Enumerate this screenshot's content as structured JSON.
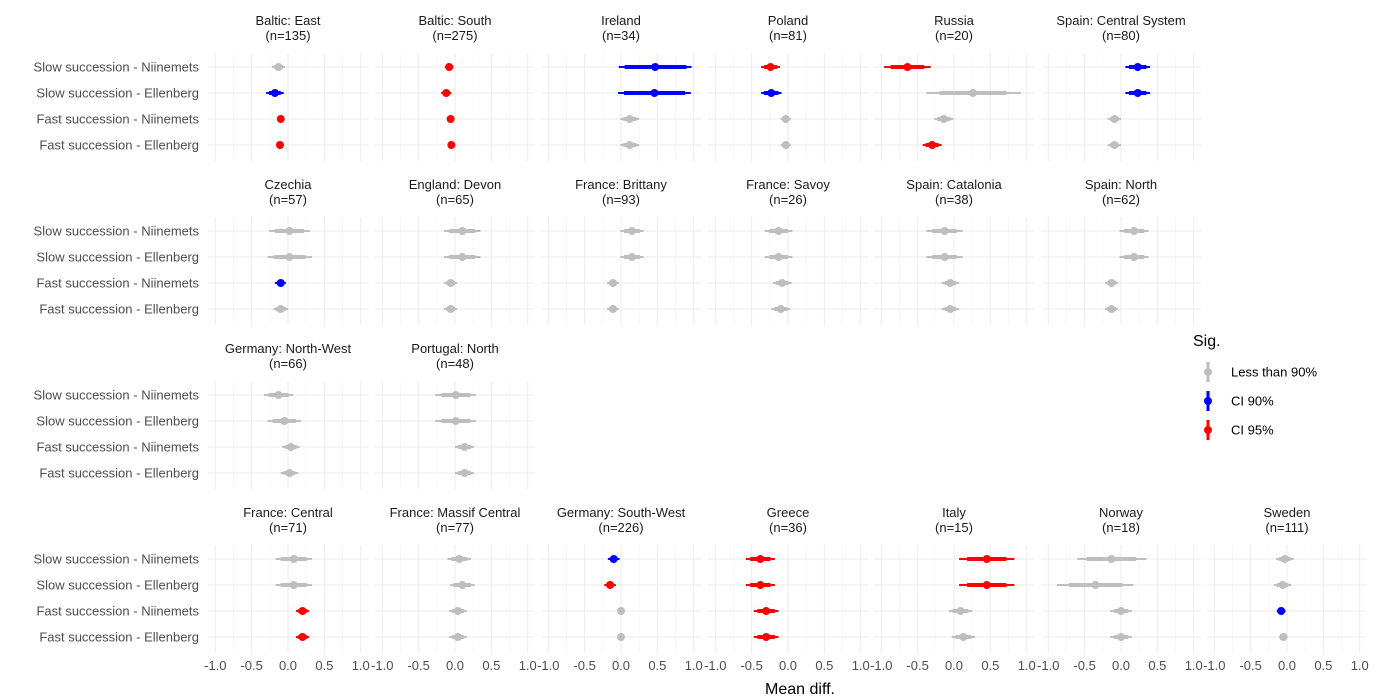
{
  "chart_data": {
    "type": "pointrange-facet",
    "xlabel": "Mean diff.",
    "xlim": [
      -1.1,
      1.1
    ],
    "xticks": [
      "-1.0",
      "-0.5",
      "0.0",
      "0.5",
      "1.0"
    ],
    "rows": [
      "Slow succession - Niinemets",
      "Slow succession - Ellenberg",
      "Fast succession - Niinemets",
      "Fast succession - Ellenberg"
    ],
    "legend": {
      "title": "Sig.",
      "position": "right",
      "entries": [
        {
          "key": "none",
          "label": "Less than 90%",
          "color": "#bebebe"
        },
        {
          "key": "ci90",
          "label": "CI 90%",
          "color": "#0000ff"
        },
        {
          "key": "ci95",
          "label": "CI 95%",
          "color": "#ff0000"
        }
      ]
    },
    "panels": [
      {
        "name": "Baltic: East",
        "n": "(n=135)",
        "row": 0,
        "col": 0,
        "points": [
          {
            "est": -0.13,
            "lo90": -0.19,
            "hi90": -0.07,
            "lo95": -0.22,
            "hi95": -0.04,
            "sig": "none"
          },
          {
            "est": -0.18,
            "lo90": -0.26,
            "hi90": -0.1,
            "lo95": -0.3,
            "hi95": -0.06,
            "sig": "ci90"
          },
          {
            "est": -0.1,
            "lo90": -0.13,
            "hi90": -0.07,
            "lo95": -0.15,
            "hi95": -0.05,
            "sig": "ci95"
          },
          {
            "est": -0.11,
            "lo90": -0.14,
            "hi90": -0.08,
            "lo95": -0.16,
            "hi95": -0.06,
            "sig": "ci95"
          }
        ]
      },
      {
        "name": "Baltic: South",
        "n": "(n=275)",
        "row": 0,
        "col": 1,
        "points": [
          {
            "est": -0.08,
            "lo90": -0.12,
            "hi90": -0.04,
            "lo95": -0.14,
            "hi95": -0.02,
            "sig": "ci95"
          },
          {
            "est": -0.12,
            "lo90": -0.17,
            "hi90": -0.07,
            "lo95": -0.19,
            "hi95": -0.05,
            "sig": "ci95"
          },
          {
            "est": -0.06,
            "lo90": -0.08,
            "hi90": -0.04,
            "lo95": -0.09,
            "hi95": -0.03,
            "sig": "ci95"
          },
          {
            "est": -0.05,
            "lo90": -0.07,
            "hi90": -0.03,
            "lo95": -0.08,
            "hi95": -0.02,
            "sig": "ci95"
          }
        ]
      },
      {
        "name": "Ireland",
        "n": "(n=34)",
        "row": 0,
        "col": 2,
        "points": [
          {
            "est": 0.47,
            "lo90": 0.05,
            "hi90": 0.9,
            "lo95": -0.03,
            "hi95": 0.97,
            "sig": "ci90"
          },
          {
            "est": 0.46,
            "lo90": 0.04,
            "hi90": 0.88,
            "lo95": -0.04,
            "hi95": 0.96,
            "sig": "ci90"
          },
          {
            "est": 0.12,
            "lo90": 0.03,
            "hi90": 0.21,
            "lo95": -0.01,
            "hi95": 0.25,
            "sig": "none"
          },
          {
            "est": 0.12,
            "lo90": 0.03,
            "hi90": 0.21,
            "lo95": -0.01,
            "hi95": 0.25,
            "sig": "none"
          }
        ]
      },
      {
        "name": "Poland",
        "n": "(n=81)",
        "row": 0,
        "col": 3,
        "points": [
          {
            "est": -0.24,
            "lo90": -0.33,
            "hi90": -0.15,
            "lo95": -0.37,
            "hi95": -0.11,
            "sig": "ci95"
          },
          {
            "est": -0.23,
            "lo90": -0.33,
            "hi90": -0.13,
            "lo95": -0.37,
            "hi95": -0.09,
            "sig": "ci90"
          },
          {
            "est": -0.03,
            "lo90": -0.08,
            "hi90": 0.02,
            "lo95": -0.1,
            "hi95": 0.04,
            "sig": "none"
          },
          {
            "est": -0.03,
            "lo90": -0.08,
            "hi90": 0.02,
            "lo95": -0.1,
            "hi95": 0.04,
            "sig": "none"
          }
        ]
      },
      {
        "name": "Russia",
        "n": "(n=20)",
        "row": 0,
        "col": 4,
        "points": [
          {
            "est": -0.64,
            "lo90": -0.87,
            "hi90": -0.41,
            "lo95": -0.96,
            "hi95": -0.32,
            "sig": "ci95"
          },
          {
            "est": 0.26,
            "lo90": -0.2,
            "hi90": 0.72,
            "lo95": -0.38,
            "hi95": 0.92,
            "sig": "none"
          },
          {
            "est": -0.14,
            "lo90": -0.23,
            "hi90": -0.05,
            "lo95": -0.27,
            "hi95": -0.01,
            "sig": "none"
          },
          {
            "est": -0.3,
            "lo90": -0.39,
            "hi90": -0.21,
            "lo95": -0.43,
            "hi95": -0.17,
            "sig": "ci95"
          }
        ]
      },
      {
        "name": "Spain: Central System",
        "n": "(n=80)",
        "row": 0,
        "col": 5,
        "points": [
          {
            "est": 0.23,
            "lo90": 0.11,
            "hi90": 0.35,
            "lo95": 0.06,
            "hi95": 0.4,
            "sig": "ci90"
          },
          {
            "est": 0.23,
            "lo90": 0.11,
            "hi90": 0.35,
            "lo95": 0.06,
            "hi95": 0.4,
            "sig": "ci90"
          },
          {
            "est": -0.09,
            "lo90": -0.15,
            "hi90": -0.03,
            "lo95": -0.18,
            "hi95": 0.0,
            "sig": "none"
          },
          {
            "est": -0.09,
            "lo90": -0.15,
            "hi90": -0.03,
            "lo95": -0.18,
            "hi95": 0.0,
            "sig": "none"
          }
        ]
      },
      {
        "name": "Czechia",
        "n": "(n=57)",
        "row": 1,
        "col": 0,
        "points": [
          {
            "est": 0.02,
            "lo90": -0.18,
            "hi90": 0.22,
            "lo95": -0.26,
            "hi95": 0.3,
            "sig": "none"
          },
          {
            "est": 0.02,
            "lo90": -0.2,
            "hi90": 0.24,
            "lo95": -0.28,
            "hi95": 0.33,
            "sig": "none"
          },
          {
            "est": -0.1,
            "lo90": -0.15,
            "hi90": -0.05,
            "lo95": -0.18,
            "hi95": -0.03,
            "sig": "ci90"
          },
          {
            "est": -0.1,
            "lo90": -0.17,
            "hi90": -0.03,
            "lo95": -0.2,
            "hi95": 0.0,
            "sig": "none"
          }
        ]
      },
      {
        "name": "England: Devon",
        "n": "(n=65)",
        "row": 1,
        "col": 1,
        "points": [
          {
            "est": 0.1,
            "lo90": -0.08,
            "hi90": 0.28,
            "lo95": -0.15,
            "hi95": 0.35,
            "sig": "none"
          },
          {
            "est": 0.1,
            "lo90": -0.08,
            "hi90": 0.28,
            "lo95": -0.15,
            "hi95": 0.35,
            "sig": "none"
          },
          {
            "est": -0.06,
            "lo90": -0.12,
            "hi90": 0.0,
            "lo95": -0.15,
            "hi95": 0.03,
            "sig": "none"
          },
          {
            "est": -0.06,
            "lo90": -0.12,
            "hi90": 0.0,
            "lo95": -0.15,
            "hi95": 0.03,
            "sig": "none"
          }
        ]
      },
      {
        "name": "France: Brittany",
        "n": "(n=93)",
        "row": 1,
        "col": 2,
        "points": [
          {
            "est": 0.15,
            "lo90": 0.04,
            "hi90": 0.26,
            "lo95": -0.01,
            "hi95": 0.31,
            "sig": "none"
          },
          {
            "est": 0.15,
            "lo90": 0.04,
            "hi90": 0.26,
            "lo95": -0.01,
            "hi95": 0.31,
            "sig": "none"
          },
          {
            "est": -0.11,
            "lo90": -0.16,
            "hi90": -0.06,
            "lo95": -0.19,
            "hi95": -0.03,
            "sig": "none"
          },
          {
            "est": -0.11,
            "lo90": -0.16,
            "hi90": -0.06,
            "lo95": -0.19,
            "hi95": -0.03,
            "sig": "none"
          }
        ]
      },
      {
        "name": "France: Savoy",
        "n": "(n=26)",
        "row": 1,
        "col": 3,
        "points": [
          {
            "est": -0.13,
            "lo90": -0.26,
            "hi90": 0.0,
            "lo95": -0.32,
            "hi95": 0.06,
            "sig": "none"
          },
          {
            "est": -0.13,
            "lo90": -0.26,
            "hi90": 0.0,
            "lo95": -0.32,
            "hi95": 0.06,
            "sig": "none"
          },
          {
            "est": -0.08,
            "lo90": -0.17,
            "hi90": 0.01,
            "lo95": -0.21,
            "hi95": 0.05,
            "sig": "none"
          },
          {
            "est": -0.1,
            "lo90": -0.19,
            "hi90": -0.01,
            "lo95": -0.23,
            "hi95": 0.03,
            "sig": "none"
          }
        ]
      },
      {
        "name": "Spain: Catalonia",
        "n": "(n=38)",
        "row": 1,
        "col": 4,
        "points": [
          {
            "est": -0.13,
            "lo90": -0.3,
            "hi90": 0.04,
            "lo95": -0.38,
            "hi95": 0.12,
            "sig": "none"
          },
          {
            "est": -0.13,
            "lo90": -0.3,
            "hi90": 0.04,
            "lo95": -0.38,
            "hi95": 0.12,
            "sig": "none"
          },
          {
            "est": -0.05,
            "lo90": -0.13,
            "hi90": 0.03,
            "lo95": -0.17,
            "hi95": 0.07,
            "sig": "none"
          },
          {
            "est": -0.05,
            "lo90": -0.13,
            "hi90": 0.03,
            "lo95": -0.17,
            "hi95": 0.07,
            "sig": "none"
          }
        ]
      },
      {
        "name": "Spain: North",
        "n": "(n=62)",
        "row": 1,
        "col": 5,
        "points": [
          {
            "est": 0.18,
            "lo90": 0.04,
            "hi90": 0.32,
            "lo95": -0.02,
            "hi95": 0.38,
            "sig": "none"
          },
          {
            "est": 0.18,
            "lo90": 0.04,
            "hi90": 0.32,
            "lo95": -0.02,
            "hi95": 0.38,
            "sig": "none"
          },
          {
            "est": -0.13,
            "lo90": -0.19,
            "hi90": -0.07,
            "lo95": -0.22,
            "hi95": -0.04,
            "sig": "none"
          },
          {
            "est": -0.13,
            "lo90": -0.19,
            "hi90": -0.07,
            "lo95": -0.22,
            "hi95": -0.04,
            "sig": "none"
          }
        ]
      },
      {
        "name": "Germany: North-West",
        "n": "(n=66)",
        "row": 2,
        "col": 0,
        "points": [
          {
            "est": -0.13,
            "lo90": -0.27,
            "hi90": 0.01,
            "lo95": -0.33,
            "hi95": 0.07,
            "sig": "none"
          },
          {
            "est": -0.05,
            "lo90": -0.21,
            "hi90": 0.11,
            "lo95": -0.28,
            "hi95": 0.18,
            "sig": "none"
          },
          {
            "est": 0.04,
            "lo90": -0.04,
            "hi90": 0.12,
            "lo95": -0.08,
            "hi95": 0.16,
            "sig": "none"
          },
          {
            "est": 0.02,
            "lo90": -0.06,
            "hi90": 0.1,
            "lo95": -0.1,
            "hi95": 0.14,
            "sig": "none"
          }
        ]
      },
      {
        "name": "Portugal: North",
        "n": "(n=48)",
        "row": 2,
        "col": 1,
        "points": [
          {
            "est": 0.01,
            "lo90": -0.19,
            "hi90": 0.21,
            "lo95": -0.27,
            "hi95": 0.29,
            "sig": "none"
          },
          {
            "est": 0.01,
            "lo90": -0.19,
            "hi90": 0.21,
            "lo95": -0.27,
            "hi95": 0.29,
            "sig": "none"
          },
          {
            "est": 0.13,
            "lo90": 0.04,
            "hi90": 0.22,
            "lo95": 0.0,
            "hi95": 0.26,
            "sig": "none"
          },
          {
            "est": 0.13,
            "lo90": 0.04,
            "hi90": 0.22,
            "lo95": 0.0,
            "hi95": 0.26,
            "sig": "none"
          }
        ]
      },
      {
        "name": "France: Central",
        "n": "(n=71)",
        "row": 3,
        "col": 0,
        "points": [
          {
            "est": 0.08,
            "lo90": -0.1,
            "hi90": 0.26,
            "lo95": -0.17,
            "hi95": 0.33,
            "sig": "none"
          },
          {
            "est": 0.08,
            "lo90": -0.1,
            "hi90": 0.26,
            "lo95": -0.17,
            "hi95": 0.33,
            "sig": "none"
          },
          {
            "est": 0.2,
            "lo90": 0.14,
            "hi90": 0.26,
            "lo95": 0.11,
            "hi95": 0.29,
            "sig": "ci95"
          },
          {
            "est": 0.2,
            "lo90": 0.14,
            "hi90": 0.26,
            "lo95": 0.11,
            "hi95": 0.29,
            "sig": "ci95"
          }
        ]
      },
      {
        "name": "France: Massif Central",
        "n": "(n=77)",
        "row": 3,
        "col": 1,
        "points": [
          {
            "est": 0.06,
            "lo90": -0.05,
            "hi90": 0.17,
            "lo95": -0.1,
            "hi95": 0.22,
            "sig": "none"
          },
          {
            "est": 0.1,
            "lo90": -0.02,
            "hi90": 0.22,
            "lo95": -0.07,
            "hi95": 0.27,
            "sig": "none"
          },
          {
            "est": 0.04,
            "lo90": -0.04,
            "hi90": 0.12,
            "lo95": -0.08,
            "hi95": 0.16,
            "sig": "none"
          },
          {
            "est": 0.04,
            "lo90": -0.04,
            "hi90": 0.12,
            "lo95": -0.08,
            "hi95": 0.16,
            "sig": "none"
          }
        ]
      },
      {
        "name": "Germany: South-West",
        "n": "(n=226)",
        "row": 3,
        "col": 2,
        "points": [
          {
            "est": -0.1,
            "lo90": -0.15,
            "hi90": -0.05,
            "lo95": -0.18,
            "hi95": -0.02,
            "sig": "ci90"
          },
          {
            "est": -0.15,
            "lo90": -0.2,
            "hi90": -0.1,
            "lo95": -0.23,
            "hi95": -0.07,
            "sig": "ci95"
          },
          {
            "est": 0.0,
            "lo90": -0.02,
            "hi90": 0.02,
            "lo95": -0.03,
            "hi95": 0.03,
            "sig": "none"
          },
          {
            "est": 0.0,
            "lo90": -0.02,
            "hi90": 0.02,
            "lo95": -0.03,
            "hi95": 0.03,
            "sig": "none"
          }
        ]
      },
      {
        "name": "Greece",
        "n": "(n=36)",
        "row": 3,
        "col": 3,
        "points": [
          {
            "est": -0.38,
            "lo90": -0.52,
            "hi90": -0.24,
            "lo95": -0.58,
            "hi95": -0.18,
            "sig": "ci95"
          },
          {
            "est": -0.38,
            "lo90": -0.52,
            "hi90": -0.24,
            "lo95": -0.58,
            "hi95": -0.18,
            "sig": "ci95"
          },
          {
            "est": -0.3,
            "lo90": -0.42,
            "hi90": -0.18,
            "lo95": -0.47,
            "hi95": -0.13,
            "sig": "ci95"
          },
          {
            "est": -0.3,
            "lo90": -0.42,
            "hi90": -0.18,
            "lo95": -0.47,
            "hi95": -0.13,
            "sig": "ci95"
          }
        ]
      },
      {
        "name": "Italy",
        "n": "(n=15)",
        "row": 3,
        "col": 4,
        "points": [
          {
            "est": 0.45,
            "lo90": 0.18,
            "hi90": 0.72,
            "lo95": 0.07,
            "hi95": 0.83,
            "sig": "ci95"
          },
          {
            "est": 0.45,
            "lo90": 0.18,
            "hi90": 0.72,
            "lo95": 0.07,
            "hi95": 0.83,
            "sig": "ci95"
          },
          {
            "est": 0.09,
            "lo90": -0.02,
            "hi90": 0.2,
            "lo95": -0.07,
            "hi95": 0.25,
            "sig": "none"
          },
          {
            "est": 0.13,
            "lo90": 0.02,
            "hi90": 0.24,
            "lo95": -0.03,
            "hi95": 0.29,
            "sig": "none"
          }
        ]
      },
      {
        "name": "Norway",
        "n": "(n=18)",
        "row": 3,
        "col": 5,
        "points": [
          {
            "est": -0.13,
            "lo90": -0.47,
            "hi90": 0.21,
            "lo95": -0.6,
            "hi95": 0.35,
            "sig": "none"
          },
          {
            "est": -0.35,
            "lo90": -0.72,
            "hi90": 0.02,
            "lo95": -0.88,
            "hi95": 0.17,
            "sig": "none"
          },
          {
            "est": 0.0,
            "lo90": -0.1,
            "hi90": 0.1,
            "lo95": -0.15,
            "hi95": 0.15,
            "sig": "none"
          },
          {
            "est": 0.0,
            "lo90": -0.1,
            "hi90": 0.1,
            "lo95": -0.15,
            "hi95": 0.15,
            "sig": "none"
          }
        ]
      },
      {
        "name": "Sweden",
        "n": "(n=111)",
        "row": 3,
        "col": 6,
        "points": [
          {
            "est": -0.03,
            "lo90": -0.11,
            "hi90": 0.05,
            "lo95": -0.15,
            "hi95": 0.09,
            "sig": "none"
          },
          {
            "est": -0.06,
            "lo90": -0.14,
            "hi90": 0.02,
            "lo95": -0.18,
            "hi95": 0.06,
            "sig": "none"
          },
          {
            "est": -0.08,
            "lo90": -0.12,
            "hi90": -0.04,
            "lo95": -0.14,
            "hi95": -0.02,
            "sig": "ci90"
          },
          {
            "est": -0.05,
            "lo90": -0.09,
            "hi90": -0.01,
            "lo95": -0.11,
            "hi95": 0.01,
            "sig": "none"
          }
        ]
      }
    ]
  }
}
